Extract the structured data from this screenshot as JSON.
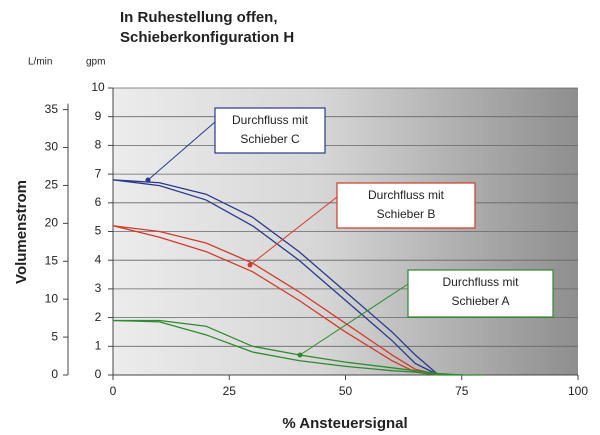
{
  "chart_data": {
    "type": "line",
    "title": [
      "In Ruhestellung offen,",
      "Schieberkonfiguration H"
    ],
    "y_unit": "gpm",
    "y2_unit": "L/min",
    "y_label": "Volumenstrom",
    "x_label": "% Ansteuersignal",
    "x": [
      0,
      10,
      20,
      30,
      40,
      50,
      60,
      65,
      70,
      75,
      80
    ],
    "xlim": [
      0,
      100
    ],
    "xticks": [
      0,
      25,
      50,
      75,
      100
    ],
    "ylim": [
      0,
      10
    ],
    "yticks": [
      0,
      1,
      2,
      3,
      4,
      5,
      6,
      7,
      8,
      9,
      10
    ],
    "y2lim": [
      0,
      37.85
    ],
    "y2ticks": [
      0,
      5,
      10,
      15,
      20,
      25,
      30,
      35
    ],
    "grid": true,
    "series": [
      {
        "color": "#2a3a8a",
        "values": [
          6.8,
          6.7,
          6.3,
          5.5,
          4.3,
          2.9,
          1.5,
          0.7,
          0,
          null,
          null
        ]
      },
      {
        "color": "#2a3a8a",
        "values": [
          6.8,
          6.6,
          6.1,
          5.2,
          4.0,
          2.6,
          1.2,
          0.4,
          0,
          null,
          null
        ]
      },
      {
        "color": "#d23a2a",
        "values": [
          5.2,
          5.0,
          4.6,
          3.9,
          2.9,
          1.8,
          0.7,
          0.2,
          0,
          null,
          null
        ]
      },
      {
        "color": "#d23a2a",
        "values": [
          5.2,
          4.8,
          4.3,
          3.6,
          2.6,
          1.5,
          0.5,
          0.1,
          0,
          null,
          null
        ]
      },
      {
        "color": "#2f8a2f",
        "values": [
          1.9,
          1.9,
          1.7,
          1.0,
          0.7,
          0.45,
          0.25,
          0.15,
          0.05,
          0,
          null
        ]
      },
      {
        "color": "#2f8a2f",
        "values": [
          1.9,
          1.85,
          1.4,
          0.8,
          0.5,
          0.3,
          0.15,
          0.1,
          0,
          0,
          0
        ]
      }
    ],
    "annotations": [
      {
        "lines": [
          "Durchfluss mit",
          "Schieber C"
        ],
        "color": "#2a3a8a"
      },
      {
        "lines": [
          "Durchfluss mit",
          "Schieber B"
        ],
        "color": "#d23a2a"
      },
      {
        "lines": [
          "Durchfluss mit",
          "Schieber A"
        ],
        "color": "#2f8a2f"
      }
    ]
  }
}
